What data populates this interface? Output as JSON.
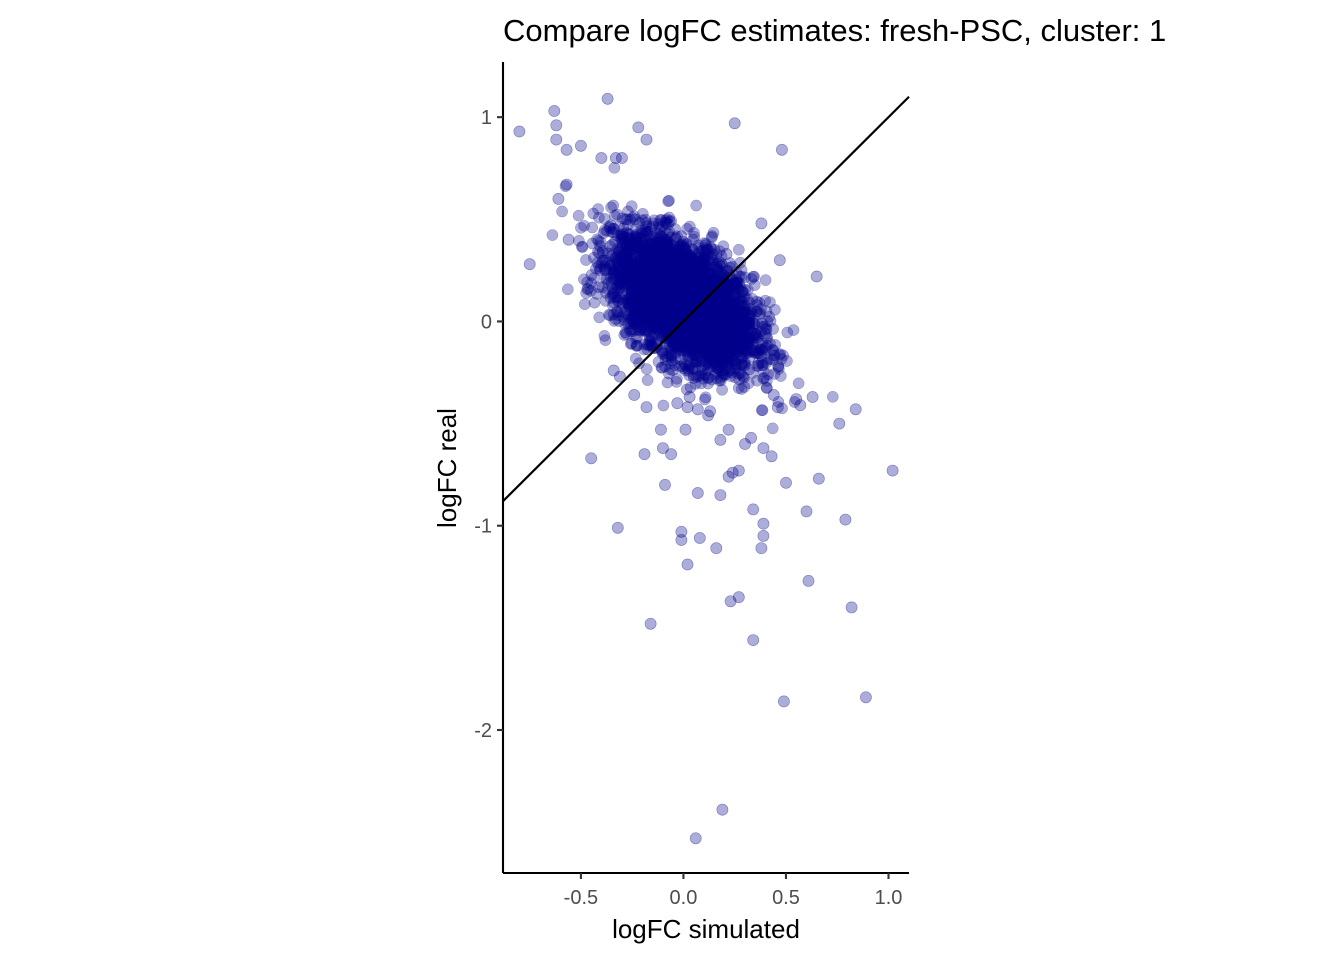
{
  "chart_data": {
    "type": "scatter",
    "title": "Compare logFC estimates: fresh-PSC, cluster: 1",
    "xlabel": "logFC simulated",
    "ylabel": "logFC real",
    "xlim": [
      -0.88,
      1.1
    ],
    "ylim": [
      -2.7,
      1.27
    ],
    "xticks": [
      -0.5,
      0.0,
      0.5,
      1.0
    ],
    "xtick_labels": [
      "-0.5",
      "0.0",
      "0.5",
      "1.0"
    ],
    "yticks": [
      -2,
      -1,
      0,
      1
    ],
    "ytick_labels": [
      "-2",
      "-1",
      "0",
      "1"
    ],
    "grid": false,
    "legend": "none",
    "point_color": "#00008B",
    "point_opacity": 0.32,
    "reference_line": {
      "type": "identity",
      "slope": 1,
      "intercept": 0
    },
    "dense_cloud": {
      "approx_points": 4000,
      "center": [
        0.0,
        0.1
      ],
      "sd": [
        0.17,
        0.16
      ],
      "correlation": -0.5
    },
    "series": [
      {
        "x": [
          -0.8,
          -0.63,
          -0.62,
          -0.62,
          -0.37,
          -0.5,
          -0.57,
          -0.22,
          -0.18,
          0.25,
          0.48,
          -0.33,
          -0.4,
          -0.3,
          -0.75,
          -0.56,
          0.38,
          0.65,
          -0.61,
          -0.57,
          -0.31,
          -0.18,
          0.13,
          0.07,
          0.02,
          -0.03,
          -0.11,
          -0.19,
          0.22,
          0.01,
          0.43,
          0.39,
          0.33,
          0.46,
          0.57,
          0.63,
          0.84,
          0.76,
          1.02,
          0.24,
          0.22,
          0.66,
          0.5,
          0.79,
          0.6,
          -0.45,
          -0.32,
          -0.09,
          0.07,
          0.18,
          0.27,
          0.34,
          0.39,
          0.39,
          0.38,
          -0.01,
          -0.01,
          0.02,
          0.08,
          0.16,
          0.61,
          0.23,
          0.27,
          0.82,
          -0.16,
          0.34,
          0.49,
          0.89,
          0.19,
          0.06,
          -0.1,
          -0.06,
          0.03,
          0.12,
          0.18,
          0.3,
          0.44,
          0.55,
          -0.34,
          -0.24,
          -0.01,
          0.21,
          0.47
        ],
        "y": [
          0.93,
          1.03,
          0.96,
          0.89,
          1.09,
          0.86,
          0.84,
          0.95,
          0.89,
          0.97,
          0.84,
          0.8,
          0.8,
          0.8,
          0.28,
          0.4,
          0.48,
          0.22,
          0.6,
          0.67,
          -0.27,
          -0.42,
          -0.44,
          -0.43,
          -0.42,
          -0.4,
          -0.53,
          -0.65,
          -0.53,
          -0.53,
          -0.66,
          -0.62,
          -0.57,
          -0.42,
          -0.41,
          -0.37,
          -0.43,
          -0.5,
          -0.73,
          -0.74,
          -0.76,
          -0.77,
          -0.79,
          -0.97,
          -0.93,
          -0.67,
          -1.01,
          -0.8,
          -0.84,
          -0.85,
          -0.73,
          -0.92,
          -0.99,
          -1.05,
          -1.11,
          -1.03,
          -1.07,
          -1.19,
          -1.06,
          -1.11,
          -1.27,
          -1.37,
          -1.35,
          -1.4,
          -1.48,
          -1.56,
          -1.86,
          -1.84,
          -2.39,
          -2.53,
          -0.62,
          -0.65,
          -0.37,
          -0.46,
          -0.58,
          -0.6,
          -0.36,
          -0.38,
          -0.24,
          -0.36,
          0.08,
          0.33,
          0.3
        ]
      }
    ]
  }
}
